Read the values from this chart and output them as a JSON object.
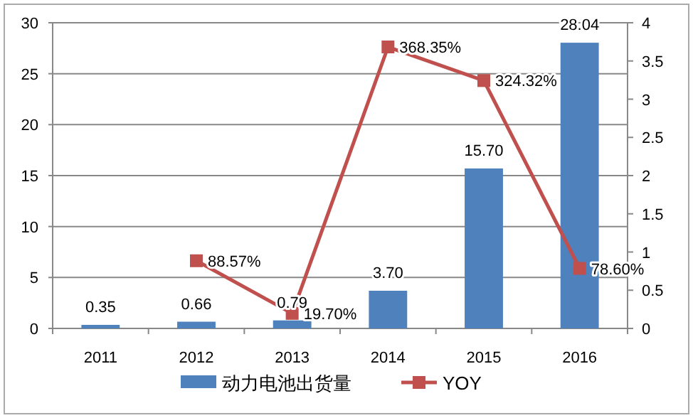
{
  "chart_data": {
    "type": "bar",
    "categories": [
      "2011",
      "2012",
      "2013",
      "2014",
      "2015",
      "2016"
    ],
    "series": [
      {
        "name": "动力电池出货量",
        "color": "#4f81bd",
        "values": [
          0.35,
          0.66,
          0.79,
          3.7,
          15.7,
          28.04
        ],
        "value_labels": [
          "0.35",
          "0.66",
          "0.79",
          "3.70",
          "15.70",
          "28.04"
        ]
      },
      {
        "name": "YOY",
        "type": "line",
        "axis": "y2",
        "color": "#c0504d",
        "marker": "square",
        "values": [
          null,
          0.8857,
          0.197,
          3.6835,
          3.2432,
          0.786
        ],
        "value_labels": [
          null,
          "88.57%",
          "19.70%",
          "368.35%",
          "324.32%",
          "78.60%"
        ]
      }
    ],
    "ylim": [
      0,
      30
    ],
    "yticks": [
      0,
      5,
      10,
      15,
      20,
      25,
      30
    ],
    "y2lim": [
      0,
      4
    ],
    "y2ticks": [
      0,
      0.5,
      1,
      1.5,
      2,
      2.5,
      3,
      3.5,
      4
    ],
    "grid": "y",
    "legend": "bottom"
  }
}
